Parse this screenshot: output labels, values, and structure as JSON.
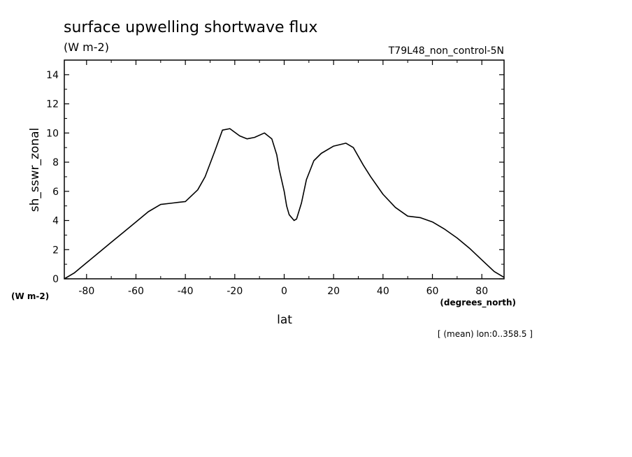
{
  "chart_data": {
    "type": "line",
    "title": "surface upwelling shortwave flux",
    "units": "(W m-2)",
    "run_label": "T79L48_non_control-5N",
    "ylabel": "sh_sswr_zonal",
    "y_units": "(W m-2)",
    "xlabel": "lat",
    "x_units": "(degrees_north)",
    "footnote": "[ (mean) lon:0..358.5 ]",
    "xlim": [
      -89,
      89
    ],
    "ylim": [
      0,
      15
    ],
    "xticks": [
      -80,
      -60,
      -40,
      -20,
      0,
      20,
      40,
      60,
      80
    ],
    "yticks": [
      0,
      2,
      4,
      6,
      8,
      10,
      12,
      14
    ],
    "grid": false,
    "series": [
      {
        "x": [
          -89,
          -85,
          -80,
          -75,
          -70,
          -65,
          -60,
          -55,
          -50,
          -45,
          -40,
          -35,
          -32,
          -28,
          -25,
          -22,
          -18,
          -15,
          -12,
          -8,
          -5,
          -3,
          -2,
          0,
          1,
          2,
          4,
          5,
          7,
          9,
          12,
          15,
          20,
          25,
          28,
          32,
          35,
          40,
          45,
          50,
          55,
          60,
          65,
          70,
          75,
          80,
          85,
          89
        ],
        "y": [
          0.0,
          0.4,
          1.1,
          1.8,
          2.5,
          3.2,
          3.9,
          4.6,
          5.1,
          5.2,
          5.3,
          6.1,
          7.0,
          8.8,
          10.2,
          10.3,
          9.8,
          9.6,
          9.7,
          10.0,
          9.6,
          8.5,
          7.5,
          6.0,
          5.0,
          4.4,
          4.0,
          4.1,
          5.2,
          6.8,
          8.1,
          8.6,
          9.1,
          9.3,
          9.0,
          7.8,
          7.0,
          5.8,
          4.9,
          4.3,
          4.2,
          3.9,
          3.4,
          2.8,
          2.1,
          1.3,
          0.5,
          0.1
        ]
      }
    ]
  }
}
